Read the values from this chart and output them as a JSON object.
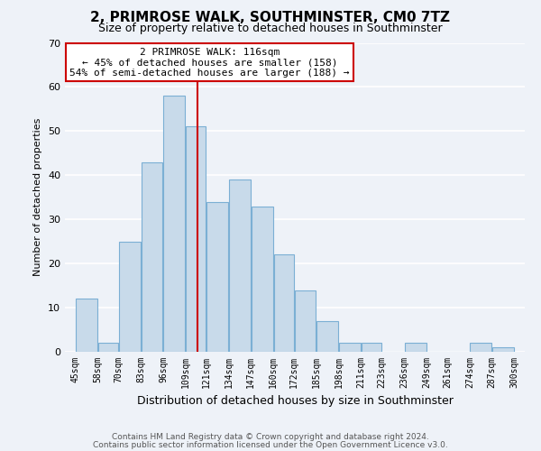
{
  "title": "2, PRIMROSE WALK, SOUTHMINSTER, CM0 7TZ",
  "subtitle": "Size of property relative to detached houses in Southminster",
  "xlabel": "Distribution of detached houses by size in Southminster",
  "ylabel": "Number of detached properties",
  "bin_edges": [
    45,
    58,
    70,
    83,
    96,
    109,
    121,
    134,
    147,
    160,
    172,
    185,
    198,
    211,
    223,
    236,
    249,
    261,
    274,
    287,
    300
  ],
  "bin_labels": [
    "45sqm",
    "58sqm",
    "70sqm",
    "83sqm",
    "96sqm",
    "109sqm",
    "121sqm",
    "134sqm",
    "147sqm",
    "160sqm",
    "172sqm",
    "185sqm",
    "198sqm",
    "211sqm",
    "223sqm",
    "236sqm",
    "249sqm",
    "261sqm",
    "274sqm",
    "287sqm",
    "300sqm"
  ],
  "counts": [
    12,
    2,
    25,
    43,
    58,
    51,
    34,
    39,
    33,
    22,
    14,
    7,
    2,
    2,
    0,
    2,
    0,
    0,
    2,
    1
  ],
  "bar_color": "#c8daea",
  "bar_edgecolor": "#7bafd4",
  "vline_x": 116,
  "annotation_line1": "2 PRIMROSE WALK: 116sqm",
  "annotation_line2": "← 45% of detached houses are smaller (158)",
  "annotation_line3": "54% of semi-detached houses are larger (188) →",
  "annotation_box_color": "#ffffff",
  "annotation_box_edgecolor": "#cc0000",
  "vline_color": "#cc0000",
  "ylim": [
    0,
    70
  ],
  "yticks": [
    0,
    10,
    20,
    30,
    40,
    50,
    60,
    70
  ],
  "footer_line1": "Contains HM Land Registry data © Crown copyright and database right 2024.",
  "footer_line2": "Contains public sector information licensed under the Open Government Licence v3.0.",
  "bg_color": "#eef2f8",
  "grid_color": "#ffffff",
  "title_fontsize": 11,
  "subtitle_fontsize": 9,
  "annotation_fontsize": 8,
  "ylabel_fontsize": 8,
  "xlabel_fontsize": 9,
  "footer_fontsize": 6.5
}
